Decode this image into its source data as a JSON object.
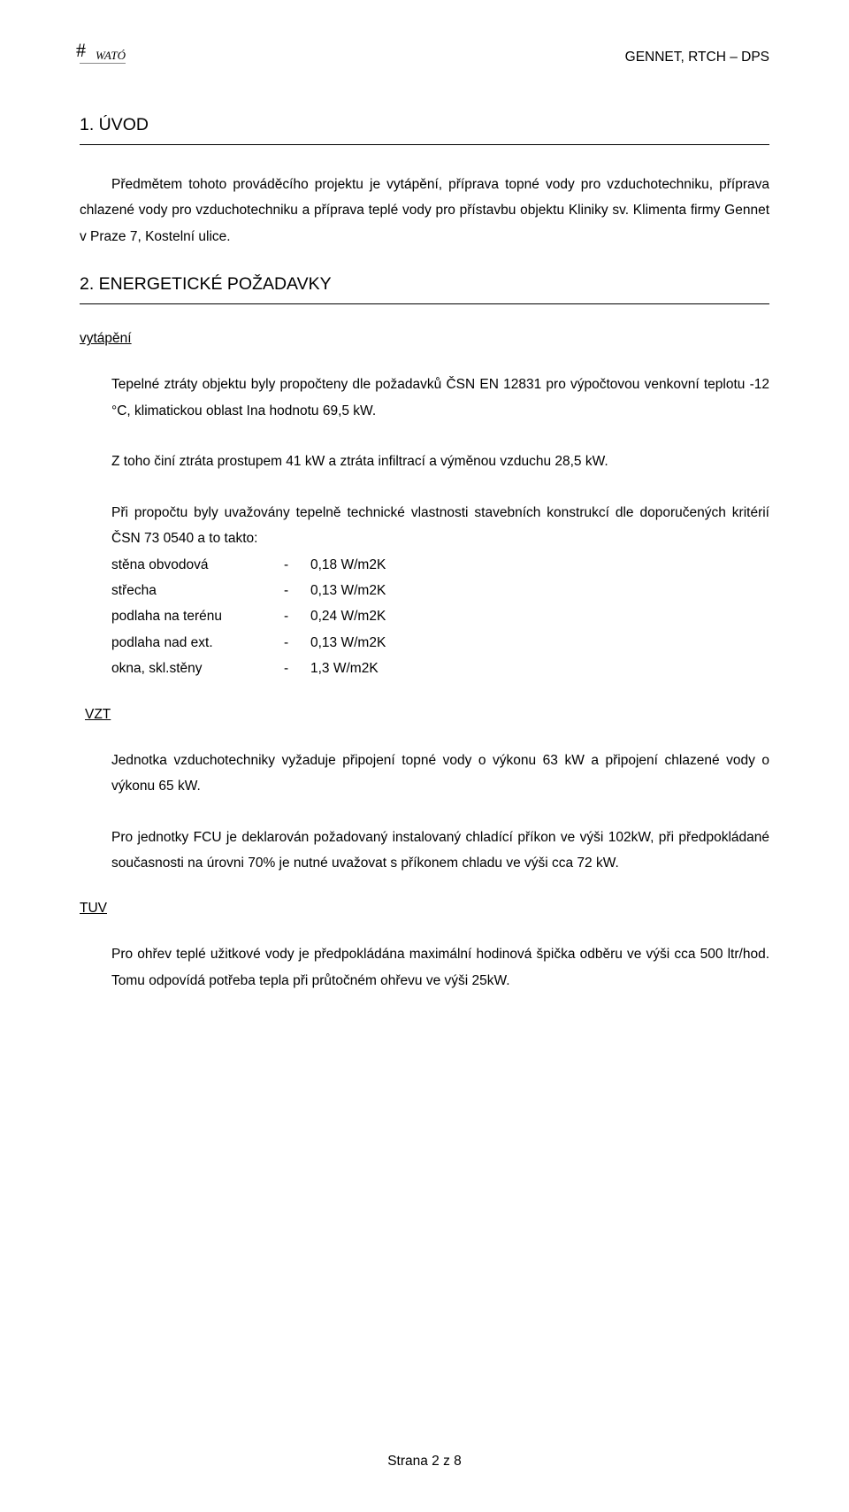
{
  "header": {
    "logo_text": "WATÓ",
    "doc_code": "GENNET, RTCH – DPS"
  },
  "section1": {
    "heading": "1. ÚVOD",
    "p1": "Předmětem tohoto prováděcího projektu je vytápění, příprava topné vody pro vzduchotechniku, příprava chlazené vody pro vzduchotechniku a příprava teplé vody pro přístavbu objektu Kliniky sv. Klimenta firmy Gennet v Praze 7, Kostelní ulice."
  },
  "section2": {
    "heading": "2. ENERGETICKÉ POŽADAVKY",
    "sub_vytapeni": "vytápění",
    "p1": "Tepelné ztráty objektu byly propočteny dle požadavků ČSN EN 12831 pro výpočtovou venkovní teplotu -12 °C, klimatickou oblast Ina hodnotu 69,5 kW.",
    "p2": "Z toho činí ztráta prostupem 41 kW a ztráta infiltrací a výměnou vzduchu 28,5 kW.",
    "p3": "Při propočtu byly uvažovány tepelně technické vlastnosti stavebních konstrukcí dle doporučených kritérií ČSN 73 0540 a to takto:",
    "table": [
      {
        "label": "stěna obvodová",
        "dash": "-",
        "value": "0,18 W/m2K"
      },
      {
        "label": "střecha",
        "dash": "-",
        "value": "0,13 W/m2K"
      },
      {
        "label": "podlaha na terénu",
        "dash": "-",
        "value": "0,24 W/m2K"
      },
      {
        "label": "podlaha nad ext.",
        "dash": "-",
        "value": "0,13 W/m2K"
      },
      {
        "label": "okna, skl.stěny",
        "dash": "-",
        "value": "1,3 W/m2K"
      }
    ],
    "sub_vzt": " VZT",
    "vzt_p1": "Jednotka vzduchotechniky vyžaduje připojení topné vody o výkonu 63 kW a připojení chlazené vody o výkonu 65 kW.",
    "vzt_p2": "Pro jednotky FCU je deklarován požadovaný instalovaný chladící příkon ve výši 102kW, při předpokládané současnosti na úrovni 70% je nutné uvažovat s příkonem chladu ve výši cca 72 kW.",
    "sub_tuv": "TUV",
    "tuv_p1": "Pro ohřev teplé užitkové vody je předpokládána maximální hodinová špička odběru ve výši cca 500 ltr/hod. Tomu odpovídá potřeba tepla při průtočném ohřevu ve výši 25kW."
  },
  "footer": {
    "page_label": "Strana 2 z 8"
  }
}
